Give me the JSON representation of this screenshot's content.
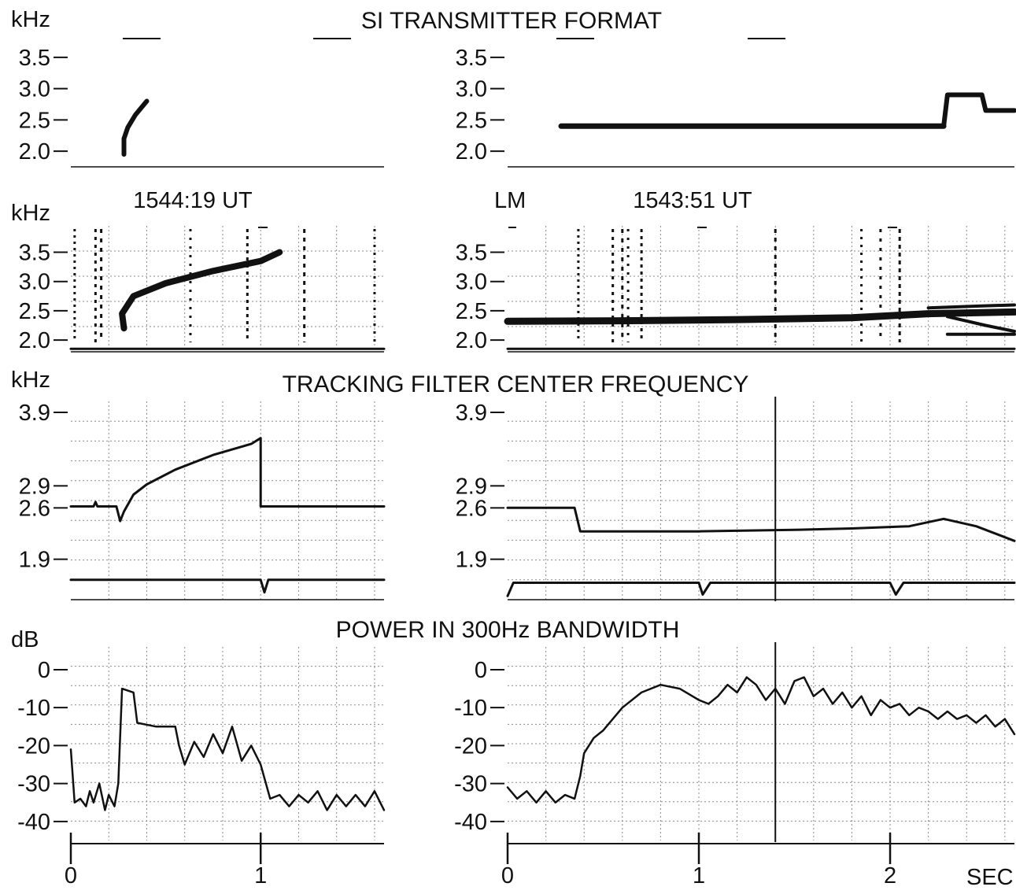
{
  "titles": {
    "format": "SI TRANSMITTER FORMAT",
    "tracking": "TRACKING FILTER CENTER FREQUENCY",
    "power": "POWER IN 300Hz BANDWIDTH"
  },
  "units": {
    "khz": "kHz",
    "db": "dB",
    "sec": "SEC"
  },
  "spectrogram": {
    "left_time": "1544:19 UT",
    "right_station": "LM",
    "right_time": "1543:51 UT"
  },
  "colors": {
    "ink": "#111111",
    "grid": "#8a8a8a",
    "background": "#ffffff"
  },
  "chart_data": [
    {
      "id": "format-left",
      "type": "line",
      "title": "SI TRANSMITTER FORMAT",
      "ylabel": "kHz",
      "xlim": [
        0,
        1.65
      ],
      "ylim": [
        1.75,
        3.85
      ],
      "yticks": [
        {
          "v": 2.0,
          "l": "2.0"
        },
        {
          "v": 2.5,
          "l": "2.5"
        },
        {
          "v": 3.0,
          "l": "3.0"
        },
        {
          "v": 3.5,
          "l": "3.5"
        }
      ],
      "series": [
        {
          "width": 6,
          "points": [
            [
              0.28,
              1.95
            ],
            [
              0.28,
              2.2
            ],
            [
              0.3,
              2.38
            ],
            [
              0.34,
              2.58
            ],
            [
              0.4,
              2.8
            ]
          ]
        }
      ]
    },
    {
      "id": "format-right",
      "type": "line",
      "xlim": [
        0,
        2.65
      ],
      "ylim": [
        1.75,
        3.85
      ],
      "yticks": [
        {
          "v": 2.0,
          "l": "2.0"
        },
        {
          "v": 2.5,
          "l": "2.5"
        },
        {
          "v": 3.0,
          "l": "3.0"
        },
        {
          "v": 3.5,
          "l": "3.5"
        }
      ],
      "series": [
        {
          "width": 7,
          "points": [
            [
              0.28,
              2.4
            ],
            [
              2.28,
              2.4
            ]
          ]
        },
        {
          "width": 6,
          "points": [
            [
              2.28,
              2.4
            ],
            [
              2.3,
              2.9
            ],
            [
              2.48,
              2.9
            ],
            [
              2.5,
              2.65
            ],
            [
              2.65,
              2.65
            ]
          ]
        }
      ]
    },
    {
      "id": "spec-left",
      "type": "line",
      "ylabel": "kHz",
      "xlim": [
        0,
        1.65
      ],
      "ylim": [
        1.8,
        3.95
      ],
      "yticks": [
        {
          "v": 2.0,
          "l": "2.0"
        },
        {
          "v": 2.5,
          "l": "2.5"
        },
        {
          "v": 3.0,
          "l": "3.0"
        },
        {
          "v": 3.5,
          "l": "3.5"
        }
      ],
      "series": [
        {
          "width": 3,
          "points": [
            [
              0,
              1.85
            ],
            [
              1.65,
              1.85
            ]
          ]
        },
        {
          "width": 8,
          "points": [
            [
              0.28,
              2.2
            ],
            [
              0.27,
              2.45
            ],
            [
              0.33,
              2.75
            ],
            [
              0.5,
              2.97
            ],
            [
              0.75,
              3.18
            ],
            [
              1.0,
              3.35
            ],
            [
              1.1,
              3.5
            ]
          ]
        }
      ],
      "noise_columns": [
        0.02,
        0.13,
        0.16,
        0.63,
        0.93,
        1.23,
        1.6
      ]
    },
    {
      "id": "spec-right",
      "type": "line",
      "xlim": [
        0,
        2.65
      ],
      "ylim": [
        1.8,
        3.95
      ],
      "yticks": [
        {
          "v": 2.0,
          "l": "2.0"
        },
        {
          "v": 2.5,
          "l": "2.5"
        },
        {
          "v": 3.0,
          "l": "3.0"
        },
        {
          "v": 3.5,
          "l": "3.5"
        }
      ],
      "series": [
        {
          "width": 3,
          "points": [
            [
              0,
              1.85
            ],
            [
              2.65,
              1.85
            ]
          ]
        },
        {
          "width": 9,
          "points": [
            [
              0,
              2.32
            ],
            [
              0.6,
              2.33
            ],
            [
              1.2,
              2.35
            ],
            [
              1.8,
              2.38
            ],
            [
              2.2,
              2.45
            ],
            [
              2.65,
              2.48
            ]
          ]
        },
        {
          "width": 4,
          "points": [
            [
              2.2,
              2.55
            ],
            [
              2.45,
              2.58
            ],
            [
              2.65,
              2.6
            ]
          ]
        },
        {
          "width": 4,
          "points": [
            [
              2.3,
              2.4
            ],
            [
              2.5,
              2.25
            ],
            [
              2.65,
              2.15
            ]
          ]
        },
        {
          "width": 4,
          "points": [
            [
              2.3,
              2.1
            ],
            [
              2.65,
              2.1
            ]
          ]
        }
      ],
      "noise_columns": [
        0.37,
        0.55,
        0.6,
        0.63,
        0.7,
        1.4,
        1.85,
        1.95,
        2.05
      ]
    },
    {
      "id": "track-left",
      "type": "line",
      "title": "TRACKING FILTER CENTER FREQUENCY",
      "ylabel": "kHz",
      "xlim": [
        0,
        1.65
      ],
      "ylim": [
        1.35,
        4.05
      ],
      "yticks": [
        {
          "v": 1.9,
          "l": "1.9"
        },
        {
          "v": 2.6,
          "l": "2.6"
        },
        {
          "v": 2.9,
          "l": "2.9"
        },
        {
          "v": 3.9,
          "l": "3.9"
        }
      ],
      "series": [
        {
          "width": 3,
          "points": [
            [
              0,
              2.62
            ],
            [
              0.12,
              2.62
            ],
            [
              0.13,
              2.68
            ],
            [
              0.14,
              2.62
            ],
            [
              0.24,
              2.62
            ],
            [
              0.26,
              2.42
            ],
            [
              0.28,
              2.55
            ],
            [
              0.33,
              2.78
            ],
            [
              0.4,
              2.92
            ],
            [
              0.55,
              3.12
            ],
            [
              0.75,
              3.32
            ],
            [
              0.95,
              3.47
            ],
            [
              1.0,
              3.55
            ],
            [
              1.0,
              2.62
            ],
            [
              1.65,
              2.62
            ]
          ]
        },
        {
          "width": 3,
          "points": [
            [
              0,
              1.62
            ],
            [
              1.0,
              1.62
            ],
            [
              1.02,
              1.45
            ],
            [
              1.04,
              1.62
            ],
            [
              1.65,
              1.62
            ]
          ]
        }
      ]
    },
    {
      "id": "track-right",
      "type": "line",
      "xlim": [
        0,
        2.65
      ],
      "ylim": [
        1.35,
        4.05
      ],
      "yticks": [
        {
          "v": 1.9,
          "l": "1.9"
        },
        {
          "v": 2.6,
          "l": "2.6"
        },
        {
          "v": 2.9,
          "l": "2.9"
        },
        {
          "v": 3.9,
          "l": "3.9"
        }
      ],
      "series": [
        {
          "width": 3,
          "points": [
            [
              0,
              2.6
            ],
            [
              0.35,
              2.6
            ],
            [
              0.38,
              2.28
            ],
            [
              1.0,
              2.28
            ],
            [
              1.5,
              2.3
            ],
            [
              1.8,
              2.32
            ],
            [
              2.1,
              2.35
            ],
            [
              2.28,
              2.45
            ],
            [
              2.45,
              2.35
            ],
            [
              2.65,
              2.15
            ]
          ]
        },
        {
          "width": 3,
          "points": [
            [
              0,
              1.4
            ],
            [
              0.03,
              1.58
            ],
            [
              1.0,
              1.58
            ],
            [
              1.02,
              1.42
            ],
            [
              1.06,
              1.58
            ],
            [
              2.0,
              1.58
            ],
            [
              2.03,
              1.42
            ],
            [
              2.07,
              1.58
            ],
            [
              2.65,
              1.58
            ]
          ]
        }
      ],
      "marker_x": 1.4
    },
    {
      "id": "power-left",
      "type": "line",
      "title": "POWER IN 300Hz BANDWIDTH",
      "ylabel": "dB",
      "xlim": [
        0,
        1.65
      ],
      "ylim": [
        -45,
        6
      ],
      "yticks": [
        {
          "v": 0,
          "l": "0"
        },
        {
          "v": -10,
          "l": "-10"
        },
        {
          "v": -20,
          "l": "-20"
        },
        {
          "v": -30,
          "l": "-30"
        },
        {
          "v": -40,
          "l": "-40"
        }
      ],
      "xticks": [
        {
          "v": 0,
          "l": "0"
        },
        {
          "v": 1,
          "l": "1"
        }
      ],
      "series": [
        {
          "width": 2.5,
          "points": [
            [
              0,
              -21
            ],
            [
              0.02,
              -35
            ],
            [
              0.05,
              -34
            ],
            [
              0.08,
              -36
            ],
            [
              0.1,
              -32
            ],
            [
              0.12,
              -35
            ],
            [
              0.15,
              -30
            ],
            [
              0.18,
              -37
            ],
            [
              0.2,
              -33
            ],
            [
              0.23,
              -36
            ],
            [
              0.25,
              -30
            ],
            [
              0.27,
              -5
            ],
            [
              0.33,
              -6
            ],
            [
              0.35,
              -14
            ],
            [
              0.45,
              -15
            ],
            [
              0.55,
              -15
            ],
            [
              0.57,
              -20
            ],
            [
              0.6,
              -25
            ],
            [
              0.65,
              -19
            ],
            [
              0.7,
              -23
            ],
            [
              0.75,
              -17
            ],
            [
              0.8,
              -22
            ],
            [
              0.85,
              -15
            ],
            [
              0.9,
              -24
            ],
            [
              0.95,
              -20
            ],
            [
              1.0,
              -25
            ],
            [
              1.05,
              -34
            ],
            [
              1.1,
              -33
            ],
            [
              1.15,
              -36
            ],
            [
              1.2,
              -33
            ],
            [
              1.25,
              -35
            ],
            [
              1.3,
              -32
            ],
            [
              1.35,
              -37
            ],
            [
              1.4,
              -33
            ],
            [
              1.45,
              -36
            ],
            [
              1.5,
              -33
            ],
            [
              1.55,
              -36
            ],
            [
              1.6,
              -32
            ],
            [
              1.65,
              -37
            ]
          ]
        }
      ]
    },
    {
      "id": "power-right",
      "type": "line",
      "xlim": [
        0,
        2.65
      ],
      "ylim": [
        -45,
        6
      ],
      "yticks": [
        {
          "v": 0,
          "l": "0"
        },
        {
          "v": -10,
          "l": "-10"
        },
        {
          "v": -20,
          "l": "-20"
        },
        {
          "v": -30,
          "l": "-30"
        },
        {
          "v": -40,
          "l": "-40"
        }
      ],
      "xticks": [
        {
          "v": 0,
          "l": "0"
        },
        {
          "v": 1,
          "l": "1"
        },
        {
          "v": 2,
          "l": "2"
        }
      ],
      "series": [
        {
          "width": 2.5,
          "points": [
            [
              0,
              -31
            ],
            [
              0.05,
              -34
            ],
            [
              0.1,
              -32
            ],
            [
              0.15,
              -35
            ],
            [
              0.2,
              -32
            ],
            [
              0.25,
              -35
            ],
            [
              0.3,
              -33
            ],
            [
              0.35,
              -34
            ],
            [
              0.38,
              -28
            ],
            [
              0.4,
              -22
            ],
            [
              0.45,
              -18
            ],
            [
              0.5,
              -16
            ],
            [
              0.55,
              -13
            ],
            [
              0.6,
              -10
            ],
            [
              0.7,
              -6
            ],
            [
              0.8,
              -4
            ],
            [
              0.9,
              -5
            ],
            [
              1.0,
              -8
            ],
            [
              1.05,
              -9
            ],
            [
              1.1,
              -7
            ],
            [
              1.15,
              -4
            ],
            [
              1.2,
              -6
            ],
            [
              1.25,
              -2
            ],
            [
              1.3,
              -4
            ],
            [
              1.35,
              -8
            ],
            [
              1.4,
              -5
            ],
            [
              1.45,
              -9
            ],
            [
              1.5,
              -3
            ],
            [
              1.55,
              -2
            ],
            [
              1.6,
              -7
            ],
            [
              1.65,
              -5
            ],
            [
              1.7,
              -9
            ],
            [
              1.75,
              -6
            ],
            [
              1.8,
              -10
            ],
            [
              1.85,
              -7
            ],
            [
              1.9,
              -12
            ],
            [
              1.95,
              -8
            ],
            [
              2.0,
              -10
            ],
            [
              2.05,
              -9
            ],
            [
              2.1,
              -12
            ],
            [
              2.15,
              -10
            ],
            [
              2.2,
              -11
            ],
            [
              2.25,
              -13
            ],
            [
              2.3,
              -11
            ],
            [
              2.35,
              -13
            ],
            [
              2.4,
              -12
            ],
            [
              2.45,
              -14
            ],
            [
              2.5,
              -12
            ],
            [
              2.55,
              -15
            ],
            [
              2.6,
              -13
            ],
            [
              2.65,
              -17
            ]
          ]
        }
      ],
      "marker_x": 1.4
    }
  ]
}
